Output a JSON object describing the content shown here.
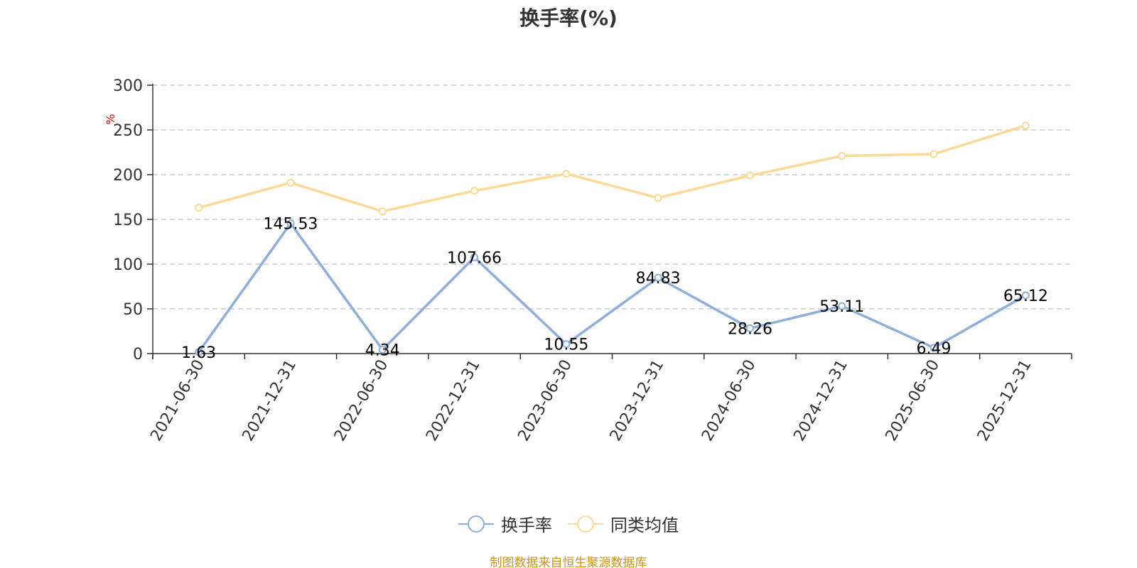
{
  "chart_data": {
    "type": "line",
    "title": "换手率(%)",
    "ylabel": "%",
    "ylim": [
      0,
      300
    ],
    "yticks": [
      0,
      50,
      100,
      150,
      200,
      250,
      300
    ],
    "categories": [
      "2021-06-30",
      "2021-12-31",
      "2022-06-30",
      "2022-12-31",
      "2023-06-30",
      "2023-12-31",
      "2024-06-30",
      "2024-12-31",
      "2025-06-30",
      "2025-12-31"
    ],
    "grid": true,
    "legend_position": "bottom",
    "series": [
      {
        "name": "换手率",
        "color": "#8eaedb",
        "values": [
          1.63,
          145.53,
          4.34,
          107.66,
          10.55,
          84.83,
          28.26,
          53.11,
          6.49,
          65.12
        ],
        "labels": [
          "1.63",
          "145.53",
          "4.34",
          "107.66",
          "10.55",
          "84.83",
          "28.26",
          "53.11",
          "6.49",
          "65.12"
        ],
        "show_labels": true
      },
      {
        "name": "同类均值",
        "color": "#fcd994",
        "values": [
          163,
          191,
          159,
          182,
          201,
          174,
          199,
          221,
          223,
          255
        ],
        "show_labels": false
      }
    ]
  },
  "source": "制图数据来自恒生聚源数据库"
}
